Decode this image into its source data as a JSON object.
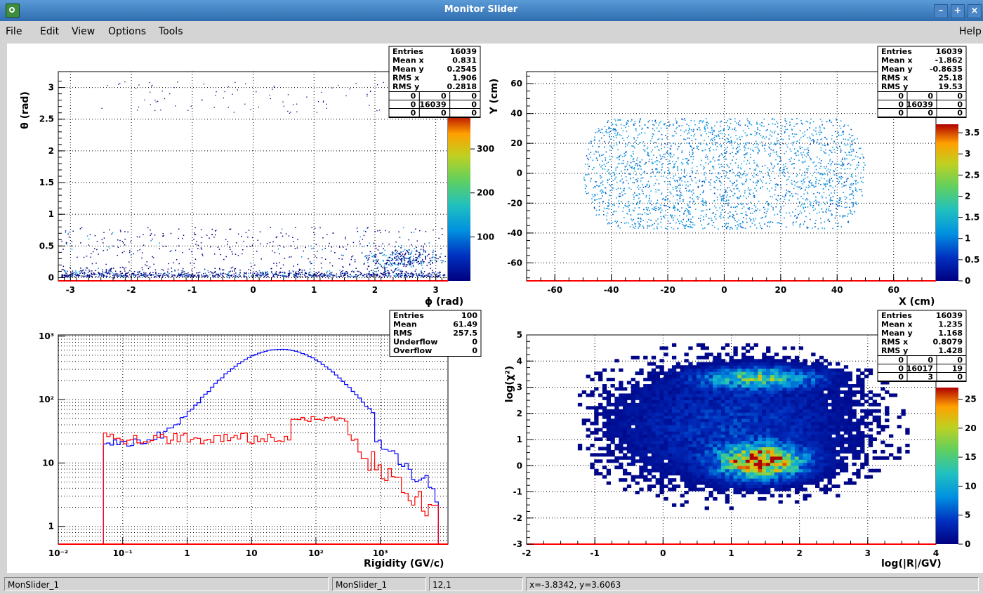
{
  "window": {
    "title": "Monitor Slider"
  },
  "menubar": {
    "file": "File",
    "edit": "Edit",
    "view": "View",
    "options": "Options",
    "tools": "Tools",
    "help": "Help"
  },
  "pads": {
    "tl": {
      "ylabel": "θ (rad)",
      "xlabel": "ϕ (rad)",
      "xticks": [
        "-3",
        "-2",
        "-1",
        "0",
        "1",
        "2",
        "3"
      ],
      "yticks": [
        "0",
        "0.5",
        "1",
        "1.5",
        "2",
        "2.5",
        "3"
      ],
      "zticks": [
        "100",
        "200",
        "300"
      ],
      "stats": [
        [
          "Entries",
          "16039"
        ],
        [
          "Mean x",
          "0.831"
        ],
        [
          "Mean y",
          "0.2545"
        ],
        [
          "RMS x",
          "1.906"
        ],
        [
          "RMS y",
          "0.2818"
        ]
      ],
      "grid": [
        [
          "0",
          "0",
          "0"
        ],
        [
          "0",
          "16039",
          "0"
        ],
        [
          "0",
          "0",
          "0"
        ]
      ]
    },
    "tr": {
      "ylabel": "Y (cm)",
      "xlabel": "X (cm)",
      "xticks": [
        "-60",
        "-40",
        "-20",
        "0",
        "20",
        "40",
        "60"
      ],
      "yticks": [
        "-60",
        "-40",
        "-20",
        "0",
        "20",
        "40",
        "60"
      ],
      "zticks": [
        "0",
        "0.5",
        "1",
        "1.5",
        "2",
        "2.5",
        "3",
        "3.5"
      ],
      "stats": [
        [
          "Entries",
          "16039"
        ],
        [
          "Mean x",
          "-1.862"
        ],
        [
          "Mean y",
          "-0.8635"
        ],
        [
          "RMS x",
          "25.18"
        ],
        [
          "RMS y",
          "19.53"
        ]
      ],
      "grid": [
        [
          "0",
          "0",
          "0"
        ],
        [
          "0",
          "16039",
          "0"
        ],
        [
          "0",
          "0",
          "0"
        ]
      ]
    },
    "bl": {
      "xlabel": "Rigidity (GV/c)",
      "xticks": [
        "10⁻²",
        "10⁻¹",
        "1",
        "10",
        "10²",
        "10³"
      ],
      "yticks": [
        "1",
        "10",
        "10²",
        "10³"
      ],
      "stats": [
        [
          "Entries",
          "100"
        ],
        [
          "Mean",
          "61.49"
        ],
        [
          "RMS",
          "257.5"
        ],
        [
          "Underflow",
          "0"
        ],
        [
          "Overflow",
          "0"
        ]
      ]
    },
    "br": {
      "ylabel": "log(χ²)",
      "xlabel": "log(|R|/GV)",
      "xticks": [
        "-2",
        "-1",
        "0",
        "1",
        "2",
        "3",
        "4"
      ],
      "yticks": [
        "-3",
        "-2",
        "-1",
        "0",
        "1",
        "2",
        "3",
        "4",
        "5"
      ],
      "zticks": [
        "0",
        "5",
        "10",
        "15",
        "20",
        "25"
      ],
      "stats": [
        [
          "Entries",
          "16039"
        ],
        [
          "Mean x",
          "1.235"
        ],
        [
          "Mean y",
          "1.168"
        ],
        [
          "RMS x",
          "0.8079"
        ],
        [
          "RMS y",
          "1.428"
        ]
      ],
      "grid": [
        [
          "0",
          "0",
          "0"
        ],
        [
          "0",
          "16017",
          "19"
        ],
        [
          "0",
          "3",
          "0"
        ]
      ]
    }
  },
  "statusbar": {
    "canvas1": "MonSlider_1",
    "canvas2": "MonSlider_1",
    "cell": "12,1",
    "coords": "x=-3.8342, y=3.6063"
  },
  "colors": {
    "accent_title": "#2f6db0",
    "hist_blue": "#0000ff",
    "hist_red": "#ff0000",
    "axis_red": "#ff0000"
  }
}
